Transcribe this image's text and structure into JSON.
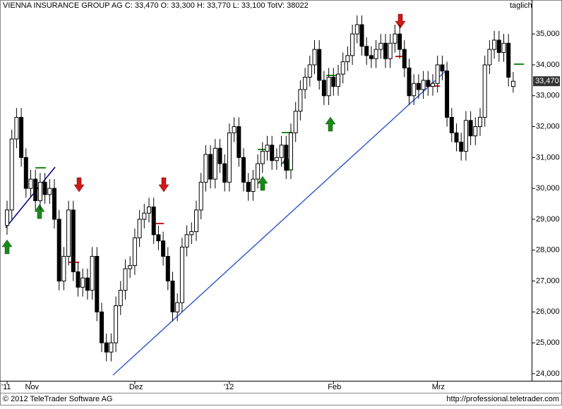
{
  "chart_data": {
    "type": "candlestick",
    "title": "VIENNA INSURANCE GROUP AG C: 33,470 O: 33,300 H: 33,770 L: 33,100 TotV: 38022",
    "frequency": "taglich",
    "last_price_label": "33,470",
    "footer_left": "© 2012 TeleTrader Software AG",
    "footer_right": "http://professional.teletrader.com",
    "categories": [
      "'11",
      null,
      null,
      null,
      null,
      "Nov",
      null,
      null,
      null,
      null,
      null,
      null,
      null,
      null,
      null,
      null,
      null,
      null,
      null,
      null,
      null,
      null,
      null,
      null,
      null,
      null,
      null,
      "Dez",
      null,
      null,
      null,
      null,
      null,
      null,
      null,
      null,
      null,
      null,
      null,
      null,
      null,
      null,
      null,
      null,
      null,
      null,
      null,
      "'12",
      null,
      null,
      null,
      null,
      null,
      null,
      null,
      null,
      null,
      null,
      null,
      null,
      null,
      null,
      null,
      null,
      null,
      null,
      null,
      null,
      null,
      "Feb",
      null,
      null,
      null,
      null,
      null,
      null,
      null,
      null,
      null,
      null,
      null,
      null,
      null,
      null,
      null,
      null,
      null,
      null,
      null,
      null,
      null,
      "Mrz",
      null,
      null,
      null,
      null,
      null,
      null,
      null,
      null,
      null,
      null,
      null,
      null,
      null,
      null,
      null,
      null
    ],
    "open": [
      28.8,
      29.3,
      31.6,
      32.3,
      31.0,
      30.0,
      30.3,
      29.6,
      30.2,
      29.8,
      30.0,
      29.0,
      27.0,
      27.8,
      29.3,
      27.3,
      26.8,
      27.1,
      26.7,
      27.8,
      26.0,
      25.0,
      24.7,
      25.0,
      26.2,
      26.7,
      27.4,
      27.5,
      28.4,
      29.0,
      29.2,
      29.4,
      28.5,
      28.3,
      27.8,
      27.0,
      26.0,
      26.3,
      28.1,
      28.5,
      28.6,
      29.3,
      30.2,
      31.1,
      30.3,
      31.3,
      30.8,
      30.2,
      31.8,
      32.0,
      31.0,
      30.2,
      29.9,
      30.3,
      30.8,
      31.2,
      31.4,
      30.9,
      31.0,
      31.4,
      30.6,
      31.8,
      32.5,
      33.2,
      33.6,
      34.0,
      34.5,
      33.5,
      33.0,
      33.6,
      33.3,
      33.7,
      34.1,
      34.3,
      35.0,
      35.3,
      34.6,
      34.3,
      34.2,
      34.5,
      34.7,
      34.2,
      34.7,
      35.0,
      34.5,
      33.9,
      33.0,
      33.4,
      33.2,
      33.5,
      33.3,
      33.4,
      34.0,
      33.8,
      32.3,
      31.8,
      31.5,
      31.2,
      32.2,
      31.7,
      32.0,
      32.3,
      34.0,
      34.5,
      34.8,
      34.4,
      34.7,
      33.3
    ],
    "high": [
      29.6,
      31.9,
      32.6,
      32.6,
      31.3,
      30.6,
      30.6,
      30.5,
      30.5,
      30.3,
      30.3,
      29.3,
      28.1,
      29.6,
      29.6,
      27.6,
      27.4,
      27.4,
      28.1,
      28.1,
      26.3,
      25.3,
      25.3,
      26.5,
      27.0,
      27.7,
      27.8,
      28.7,
      29.3,
      29.5,
      29.7,
      29.7,
      28.8,
      28.6,
      28.1,
      27.3,
      26.6,
      28.4,
      28.8,
      28.9,
      29.6,
      30.5,
      31.4,
      31.4,
      31.6,
      31.6,
      31.1,
      32.1,
      32.3,
      32.3,
      31.3,
      30.5,
      30.6,
      31.1,
      31.5,
      31.7,
      31.7,
      31.3,
      31.7,
      31.7,
      32.1,
      32.8,
      33.5,
      33.9,
      34.3,
      34.8,
      34.8,
      33.8,
      33.9,
      33.9,
      34.0,
      34.4,
      34.6,
      35.3,
      35.6,
      35.6,
      34.9,
      34.6,
      34.8,
      35.0,
      35.0,
      35.0,
      35.3,
      35.3,
      34.8,
      34.2,
      33.7,
      33.7,
      33.8,
      33.8,
      33.7,
      34.3,
      34.3,
      34.1,
      32.6,
      32.1,
      31.8,
      32.5,
      32.5,
      32.3,
      32.6,
      34.3,
      34.8,
      35.1,
      35.1,
      35.0,
      35.0,
      33.77
    ],
    "low": [
      28.5,
      29.0,
      31.3,
      30.7,
      29.7,
      29.7,
      29.3,
      29.3,
      29.5,
      29.5,
      28.7,
      26.7,
      26.7,
      27.5,
      27.0,
      26.5,
      26.5,
      26.4,
      26.4,
      25.7,
      24.7,
      24.4,
      24.4,
      24.7,
      25.9,
      26.4,
      27.1,
      27.2,
      28.1,
      28.7,
      28.9,
      28.2,
      28.0,
      27.5,
      26.7,
      25.7,
      25.7,
      26.0,
      27.8,
      28.2,
      28.3,
      29.0,
      29.9,
      30.0,
      30.0,
      30.5,
      29.9,
      29.9,
      31.5,
      30.7,
      29.9,
      29.6,
      29.6,
      30.0,
      30.5,
      30.9,
      30.6,
      30.6,
      30.7,
      30.3,
      30.3,
      31.5,
      32.2,
      32.9,
      33.3,
      33.7,
      33.2,
      32.7,
      32.7,
      33.0,
      33.0,
      33.4,
      33.8,
      34.0,
      34.7,
      34.3,
      34.0,
      33.9,
      33.9,
      34.2,
      33.9,
      33.9,
      34.4,
      34.2,
      33.6,
      32.7,
      32.7,
      32.9,
      32.9,
      33.0,
      33.0,
      33.1,
      33.5,
      32.0,
      31.5,
      31.2,
      30.9,
      30.9,
      31.4,
      31.4,
      31.7,
      32.0,
      33.7,
      34.2,
      34.1,
      34.1,
      33.3,
      33.1
    ],
    "close": [
      29.3,
      31.6,
      32.3,
      31.0,
      30.0,
      30.3,
      29.6,
      30.2,
      29.8,
      30.0,
      29.0,
      27.0,
      27.8,
      29.3,
      27.3,
      26.8,
      27.1,
      26.7,
      27.8,
      26.0,
      25.0,
      24.7,
      25.0,
      26.2,
      26.7,
      27.4,
      27.5,
      28.4,
      29.0,
      29.2,
      29.4,
      28.5,
      28.3,
      27.8,
      27.0,
      26.0,
      26.3,
      28.1,
      28.5,
      28.6,
      29.3,
      30.2,
      31.1,
      30.3,
      31.3,
      30.8,
      30.2,
      31.8,
      32.0,
      31.0,
      30.2,
      29.9,
      30.3,
      30.8,
      31.2,
      31.4,
      30.9,
      31.0,
      31.4,
      30.6,
      31.8,
      32.5,
      33.2,
      33.6,
      34.0,
      34.5,
      33.5,
      33.0,
      33.6,
      33.3,
      33.7,
      34.1,
      34.3,
      35.0,
      35.3,
      34.6,
      34.3,
      34.2,
      34.5,
      34.7,
      34.2,
      34.7,
      35.0,
      34.5,
      33.9,
      33.0,
      33.4,
      33.2,
      33.5,
      33.3,
      33.4,
      34.0,
      33.8,
      32.3,
      31.8,
      31.5,
      31.2,
      32.2,
      31.7,
      32.0,
      32.3,
      34.0,
      34.5,
      34.8,
      34.4,
      34.7,
      33.6,
      33.47
    ],
    "up_color": "#ffffff",
    "down_color": "#000000",
    "ylim": [
      23.77,
      36.1
    ],
    "yticks": [
      {
        "value": 24,
        "label": "24,000"
      },
      {
        "value": 25,
        "label": "25,000"
      },
      {
        "value": 26,
        "label": "26,000"
      },
      {
        "value": 27,
        "label": "27,000"
      },
      {
        "value": 28,
        "label": "28,000"
      },
      {
        "value": 29,
        "label": "29,000"
      },
      {
        "value": 30,
        "label": "30,000"
      },
      {
        "value": 31,
        "label": "31,000"
      },
      {
        "value": 32,
        "label": "32,000"
      },
      {
        "value": 33,
        "label": "33,000"
      },
      {
        "value": 34,
        "label": "34,000"
      },
      {
        "value": 35,
        "label": "35,000"
      }
    ]
  }
}
